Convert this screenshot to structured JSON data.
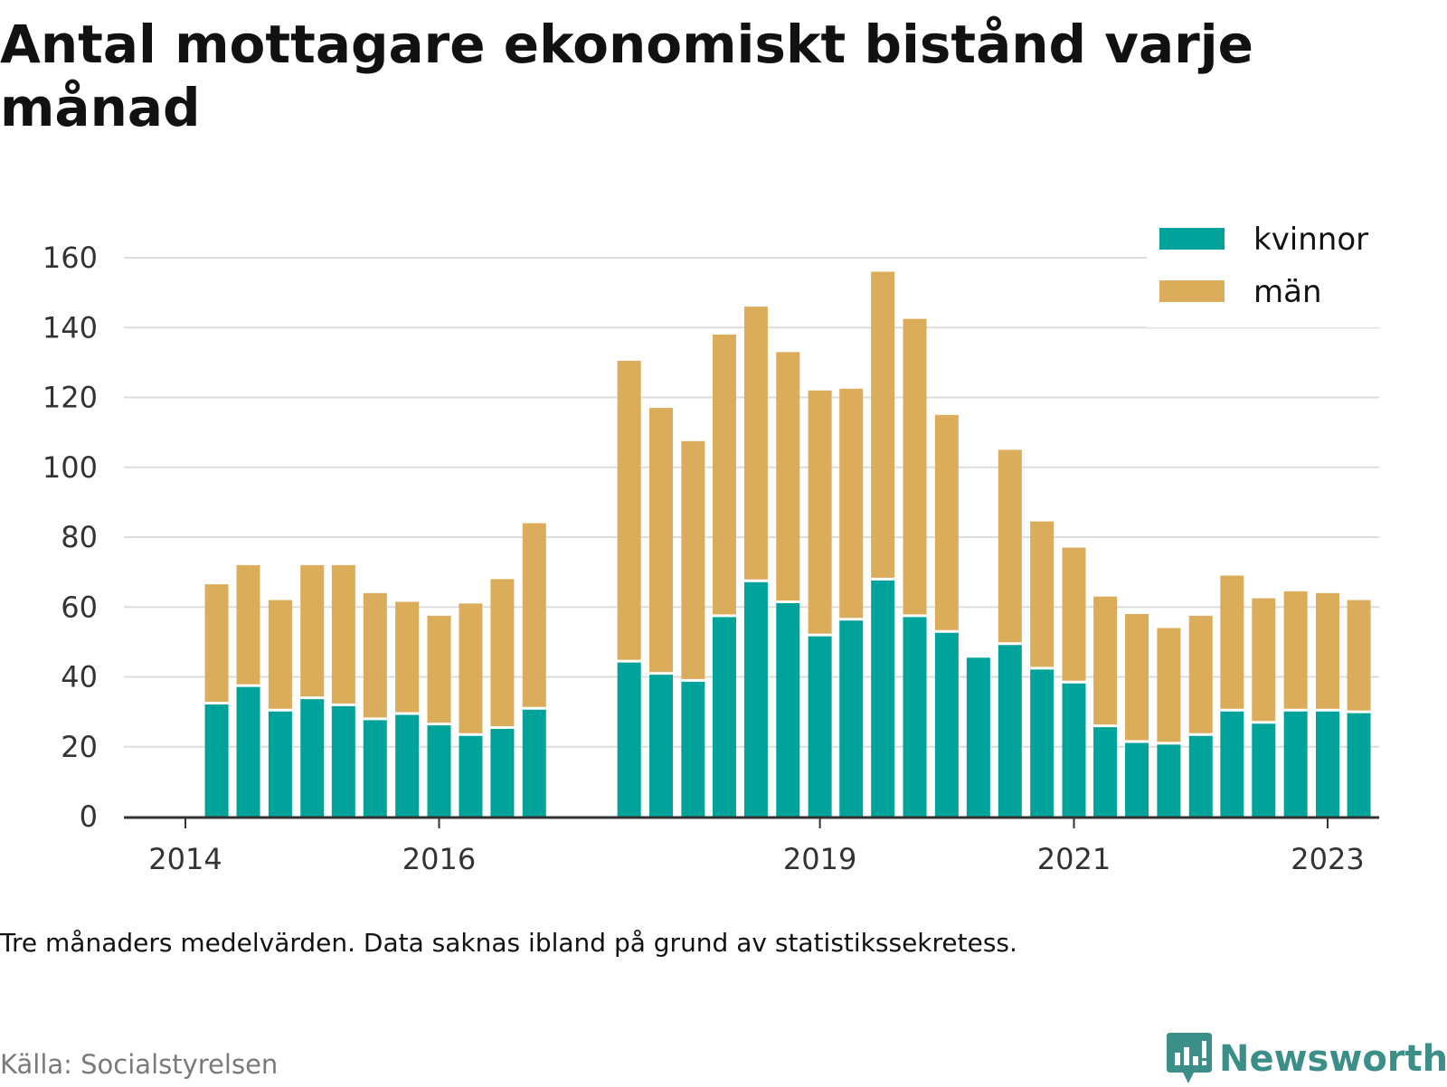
{
  "title": "Antal mottagare ekonomiskt bistånd varje månad",
  "note": "Tre månaders medelvärden. Data saknas ibland på grund av statistikssekretess.",
  "source": "Källa: Socialstyrelsen",
  "brand": {
    "name": "Newsworthy",
    "icon": "newsworthy-logo-icon",
    "color": "#3c8f88"
  },
  "chart_data": {
    "type": "bar",
    "stacked": true,
    "x": [
      "2014-04-01",
      "2014-07-01",
      "2014-10-01",
      "2015-01-01",
      "2015-04-01",
      "2015-07-01",
      "2015-10-01",
      "2016-01-01",
      "2016-04-01",
      "2016-07-01",
      "2016-10-01",
      "2017-07-01",
      "2017-10-01",
      "2018-01-01",
      "2018-04-01",
      "2018-07-01",
      "2018-10-01",
      "2019-01-01",
      "2019-04-01",
      "2019-07-01",
      "2019-10-01",
      "2020-01-01",
      "2020-04-01",
      "2020-07-01",
      "2020-10-01",
      "2021-01-01",
      "2021-04-01",
      "2021-07-01",
      "2021-10-01",
      "2022-01-01",
      "2022-04-01",
      "2022-07-01",
      "2022-10-01",
      "2023-01-01",
      "2023-04-01"
    ],
    "series": [
      {
        "name": "kvinnor",
        "color": "#00a39a",
        "values": [
          32.5,
          37.5,
          30.5,
          34,
          32,
          28,
          29.5,
          26.5,
          23.5,
          25.5,
          31,
          44.5,
          41,
          39,
          57.5,
          67.5,
          61.5,
          52,
          56.5,
          68,
          57.5,
          53,
          45.5,
          49.5,
          42.5,
          38.5,
          26,
          21.5,
          21,
          23.5,
          30.5,
          27,
          30.5,
          30.5,
          30
        ]
      },
      {
        "name": "män",
        "color": "#dbad5a",
        "values": [
          34,
          34.5,
          31.5,
          38,
          40,
          36,
          32,
          31,
          37.5,
          42.5,
          53,
          86,
          76,
          68.5,
          80.5,
          78.5,
          71.5,
          70,
          66,
          88,
          85,
          62,
          null,
          55.5,
          42,
          38.5,
          37,
          36.5,
          33,
          34,
          38.5,
          35.5,
          34,
          33.5,
          32
        ]
      }
    ],
    "ylim": [
      0,
      160
    ],
    "yticks": [
      0,
      20,
      40,
      60,
      80,
      100,
      120,
      140,
      160
    ],
    "xticks": [
      {
        "label": "2014",
        "date": "2014-01-01"
      },
      {
        "label": "2016",
        "date": "2016-01-01"
      },
      {
        "label": "2019",
        "date": "2019-01-01"
      },
      {
        "label": "2021",
        "date": "2021-01-01"
      },
      {
        "label": "2023",
        "date": "2023-01-01"
      }
    ],
    "grid": true,
    "legend": {
      "placement": "top-right"
    }
  }
}
